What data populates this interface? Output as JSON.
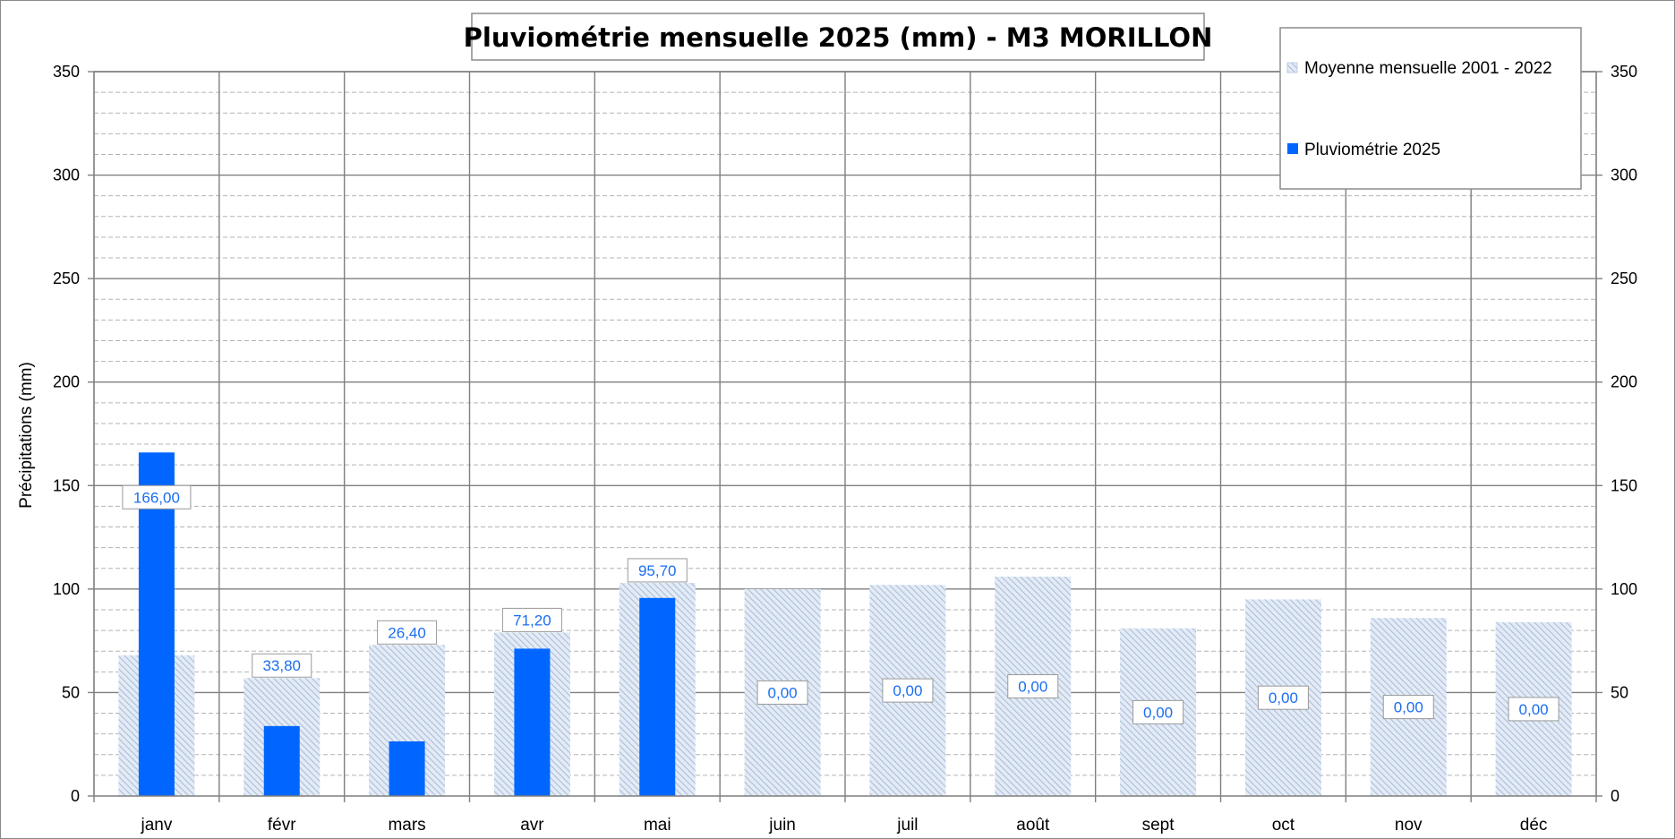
{
  "chart_data": {
    "type": "bar",
    "title": "Pluviométrie mensuelle 2025 (mm) - M3 MORILLON",
    "ylabel": "Précipitations (mm)",
    "xlabel": "",
    "ylim": [
      0,
      350
    ],
    "major_step": 50,
    "minor_step": 10,
    "yticks": [
      "0",
      "50",
      "100",
      "150",
      "200",
      "250",
      "300",
      "350"
    ],
    "secondary_axis": true,
    "grid": true,
    "legend_position": "top-right",
    "categories": [
      "janv",
      "févr",
      "mars",
      "avr",
      "mai",
      "juin",
      "juil",
      "août",
      "sept",
      "oct",
      "nov",
      "déc"
    ],
    "series": [
      {
        "name": "Moyenne mensuelle 2001 - 2022",
        "style": "hatched",
        "color": "#b4c6e0",
        "values": [
          68,
          57,
          73,
          79,
          103,
          100,
          102,
          106,
          81,
          95,
          86,
          84
        ]
      },
      {
        "name": "Pluviométrie 2025",
        "style": "solid",
        "color": "#0066ff",
        "values": [
          166.0,
          33.8,
          26.4,
          71.2,
          95.7,
          0,
          0,
          0,
          0,
          0,
          0,
          0
        ],
        "data_labels": [
          "166,00",
          "33,80",
          "26,40",
          "71,20",
          "95,70",
          "0,00",
          "0,00",
          "0,00",
          "0,00",
          "0,00",
          "0,00",
          "0,00"
        ]
      }
    ],
    "label_color": "#1a6ef0"
  }
}
